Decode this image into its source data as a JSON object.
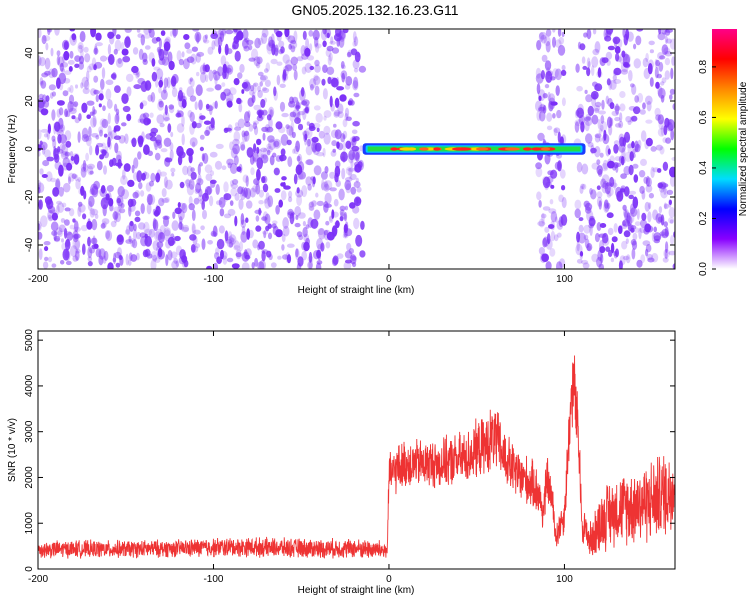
{
  "title": "GN05.2025.132.16.23.G11",
  "chart_data": [
    {
      "type": "heatmap",
      "xlabel": "Height of straight line (km)",
      "ylabel": "Frequency (Hz)",
      "xlim": [
        -200,
        163
      ],
      "ylim": [
        -50,
        50
      ],
      "xticks": [
        "-200",
        "-100",
        "0",
        "100"
      ],
      "yticks": [
        "-40",
        "-20",
        "0",
        "20",
        "40"
      ],
      "colorbar": {
        "label": "Normalized spectral amplitude",
        "range": [
          0.0,
          0.95
        ],
        "ticks": [
          "0.0",
          "0.2",
          "0.4",
          "0.6",
          "0.8"
        ],
        "colors": [
          "#ffffff",
          "#8800ff",
          "#0000ff",
          "#00ddff",
          "#00ff00",
          "#ffff00",
          "#ff8800",
          "#ff0000",
          "#ff0088"
        ]
      },
      "noise_color": "#7b2ff7",
      "noise_regions_km": [
        [
          -200,
          -15
        ],
        [
          85,
          100
        ],
        [
          107,
          163
        ]
      ],
      "signal_band": {
        "x_start_km": -15,
        "x_end_km": 112,
        "freq_hz": 0,
        "halfwidth_hz": 2
      }
    },
    {
      "type": "line",
      "xlabel": "Height of straight line (km)",
      "ylabel": "SNR (10 * v/v)",
      "xlim": [
        -200,
        163
      ],
      "ylim": [
        0,
        5200
      ],
      "xticks": [
        "-200",
        "-100",
        "0",
        "100"
      ],
      "yticks": [
        "0",
        "1000",
        "2000",
        "3000",
        "4000",
        "5000"
      ],
      "series": [
        {
          "color": "#ee3333",
          "x": [
            -200,
            -180,
            -160,
            -140,
            -120,
            -100,
            -80,
            -60,
            -40,
            -20,
            -5,
            -1,
            0,
            5,
            10,
            20,
            30,
            40,
            45,
            50,
            55,
            60,
            65,
            70,
            75,
            80,
            85,
            88,
            90,
            93,
            95,
            100,
            103,
            105,
            108,
            110,
            115,
            120,
            125,
            130,
            140,
            150,
            160,
            163
          ],
          "mean": [
            420,
            440,
            430,
            440,
            450,
            470,
            480,
            460,
            450,
            450,
            420,
            400,
            2000,
            2200,
            2300,
            2300,
            2300,
            2400,
            2450,
            2600,
            2700,
            2900,
            2500,
            2200,
            2000,
            1900,
            1700,
            1200,
            2000,
            1500,
            700,
            1200,
            3200,
            4200,
            2800,
            1000,
            600,
            1000,
            1200,
            1300,
            1400,
            1500,
            1700,
            1900
          ],
          "spread": [
            180,
            180,
            180,
            180,
            180,
            200,
            200,
            200,
            200,
            200,
            200,
            180,
            450,
            500,
            500,
            500,
            500,
            550,
            550,
            600,
            600,
            700,
            600,
            550,
            550,
            500,
            500,
            400,
            500,
            400,
            300,
            400,
            700,
            900,
            700,
            400,
            400,
            600,
            700,
            700,
            800,
            850,
            900,
            1000
          ]
        }
      ]
    }
  ]
}
